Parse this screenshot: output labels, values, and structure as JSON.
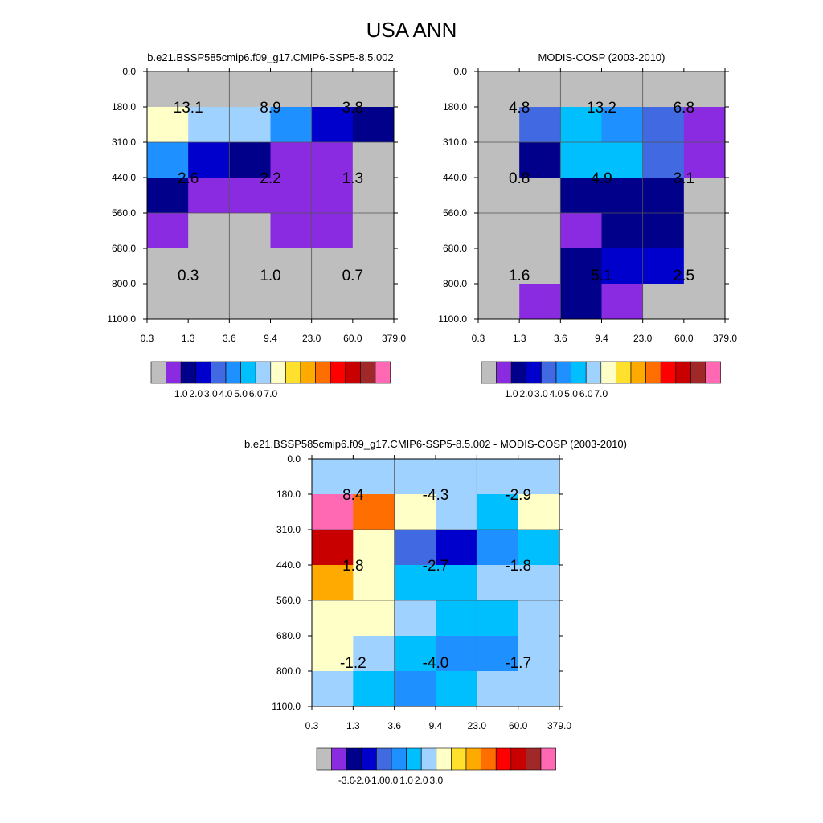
{
  "figure": {
    "title": "USA ANN"
  },
  "chart_data": [
    {
      "type": "heatmap",
      "title": "b.e21.BSSP585cmip6.f09_g17.CMIP6-SSP5-8.5.002",
      "x_ticks": [
        "0.3",
        "1.3",
        "3.6",
        "9.4",
        "23.0",
        "60.0",
        "379.0"
      ],
      "y_ticks": [
        "0.0",
        "180.0",
        "310.0",
        "440.0",
        "560.0",
        "680.0",
        "800.0",
        "1100.0"
      ],
      "xlabel": "",
      "ylabel": "",
      "cells": [
        [
          "gray",
          "gray",
          "gray",
          "gray",
          "gray",
          "gray"
        ],
        [
          "pale",
          "lightblue",
          "lightblue",
          "dodger",
          "blue",
          "navy"
        ],
        [
          "dodger",
          "blue",
          "navy",
          "purple",
          "purple",
          "gray"
        ],
        [
          "navy",
          "purple",
          "purple",
          "purple",
          "purple",
          "gray"
        ],
        [
          "purple",
          "gray",
          "gray",
          "purple",
          "purple",
          "gray"
        ],
        [
          "gray",
          "gray",
          "gray",
          "gray",
          "gray",
          "gray"
        ],
        [
          "gray",
          "gray",
          "gray",
          "gray",
          "gray",
          "gray"
        ]
      ],
      "box_values": [
        [
          "13.1",
          "8.9",
          "3.8"
        ],
        [
          "2.6",
          "2.2",
          "1.3"
        ],
        [
          "0.3",
          "1.0",
          "0.7"
        ]
      ],
      "colorbar": {
        "colors": [
          "#bebebe",
          "#8a2be2",
          "#00008b",
          "#0000cd",
          "#4169e1",
          "#1e90ff",
          "#00bfff",
          "#a0d2ff",
          "#ffffc8",
          "#ffe12d",
          "#ffaa00",
          "#ff6e00",
          "#ff0000",
          "#c80000",
          "#a02828",
          "#ff69b4"
        ],
        "labels": [
          "1.0",
          "2.0",
          "3.0",
          "4.0",
          "5.0",
          "6.0",
          "7.0"
        ]
      }
    },
    {
      "type": "heatmap",
      "title": "MODIS-COSP (2003-2010)",
      "x_ticks": [
        "0.3",
        "1.3",
        "3.6",
        "9.4",
        "23.0",
        "60.0",
        "379.0"
      ],
      "y_ticks": [
        "0.0",
        "180.0",
        "310.0",
        "440.0",
        "560.0",
        "680.0",
        "800.0",
        "1100.0"
      ],
      "xlabel": "",
      "ylabel": "",
      "cells": [
        [
          "gray",
          "gray",
          "gray",
          "gray",
          "gray",
          "gray"
        ],
        [
          "gray",
          "royal",
          "deepsky",
          "dodger",
          "royal",
          "purple"
        ],
        [
          "gray",
          "navy",
          "deepsky",
          "deepsky",
          "royal",
          "purple"
        ],
        [
          "gray",
          "gray",
          "navy",
          "navy",
          "navy",
          "gray"
        ],
        [
          "gray",
          "gray",
          "purple",
          "navy",
          "navy",
          "gray"
        ],
        [
          "gray",
          "gray",
          "navy",
          "blue",
          "blue",
          "gray"
        ],
        [
          "gray",
          "purple",
          "navy",
          "purple",
          "gray",
          "gray"
        ]
      ],
      "box_values": [
        [
          "4.8",
          "13.2",
          "6.8"
        ],
        [
          "0.8",
          "4.9",
          "3.1"
        ],
        [
          "1.6",
          "5.1",
          "2.5"
        ]
      ],
      "colorbar": {
        "colors": [
          "#bebebe",
          "#8a2be2",
          "#00008b",
          "#0000cd",
          "#4169e1",
          "#1e90ff",
          "#00bfff",
          "#a0d2ff",
          "#ffffc8",
          "#ffe12d",
          "#ffaa00",
          "#ff6e00",
          "#ff0000",
          "#c80000",
          "#a02828",
          "#ff69b4"
        ],
        "labels": [
          "1.0",
          "2.0",
          "3.0",
          "4.0",
          "5.0",
          "6.0",
          "7.0"
        ]
      }
    },
    {
      "type": "heatmap",
      "title": "b.e21.BSSP585cmip6.f09_g17.CMIP6-SSP5-8.5.002 - MODIS-COSP (2003-2010)",
      "x_ticks": [
        "0.3",
        "1.3",
        "3.6",
        "9.4",
        "23.0",
        "60.0",
        "379.0"
      ],
      "y_ticks": [
        "0.0",
        "180.0",
        "310.0",
        "440.0",
        "560.0",
        "680.0",
        "800.0",
        "1100.0"
      ],
      "xlabel": "",
      "ylabel": "",
      "cells": [
        [
          "lightblue",
          "lightblue",
          "lightblue",
          "lightblue",
          "lightblue",
          "lightblue"
        ],
        [
          "pink",
          "orange",
          "pale",
          "lightblue",
          "deepsky",
          "pale"
        ],
        [
          "darkred",
          "pale",
          "royal",
          "blue",
          "dodger",
          "deepsky"
        ],
        [
          "amber",
          "pale",
          "deepsky",
          "deepsky",
          "lightblue",
          "lightblue"
        ],
        [
          "pale",
          "pale",
          "lightblue",
          "deepsky",
          "deepsky",
          "lightblue"
        ],
        [
          "pale",
          "lightblue",
          "deepsky",
          "dodger",
          "dodger",
          "lightblue"
        ],
        [
          "lightblue",
          "deepsky",
          "dodger",
          "deepsky",
          "lightblue",
          "lightblue"
        ]
      ],
      "box_values": [
        [
          "8.4",
          "-4.3",
          "-2.9"
        ],
        [
          "1.8",
          "-2.7",
          "-1.8"
        ],
        [
          "-1.2",
          "-4.0",
          "-1.7"
        ]
      ],
      "colorbar": {
        "colors": [
          "#bebebe",
          "#8a2be2",
          "#00008b",
          "#0000cd",
          "#4169e1",
          "#1e90ff",
          "#00bfff",
          "#a0d2ff",
          "#ffffc8",
          "#ffe12d",
          "#ffaa00",
          "#ff6e00",
          "#ff0000",
          "#c80000",
          "#a02828",
          "#ff69b4"
        ],
        "labels": [
          "-3.0",
          "-2.0",
          "-1.0",
          "0.0",
          "1.0",
          "2.0",
          "3.0"
        ]
      }
    }
  ],
  "palette": {
    "gray": "#bebebe",
    "purple": "#8a2be2",
    "navy": "#00008b",
    "blue": "#0000cd",
    "royal": "#4169e1",
    "dodger": "#1e90ff",
    "deepsky": "#00bfff",
    "lightblue": "#a0d2ff",
    "pale": "#ffffc8",
    "amber": "#ffaa00",
    "orange": "#ff6e00",
    "darkred": "#c80000",
    "pink": "#ff69b4"
  }
}
